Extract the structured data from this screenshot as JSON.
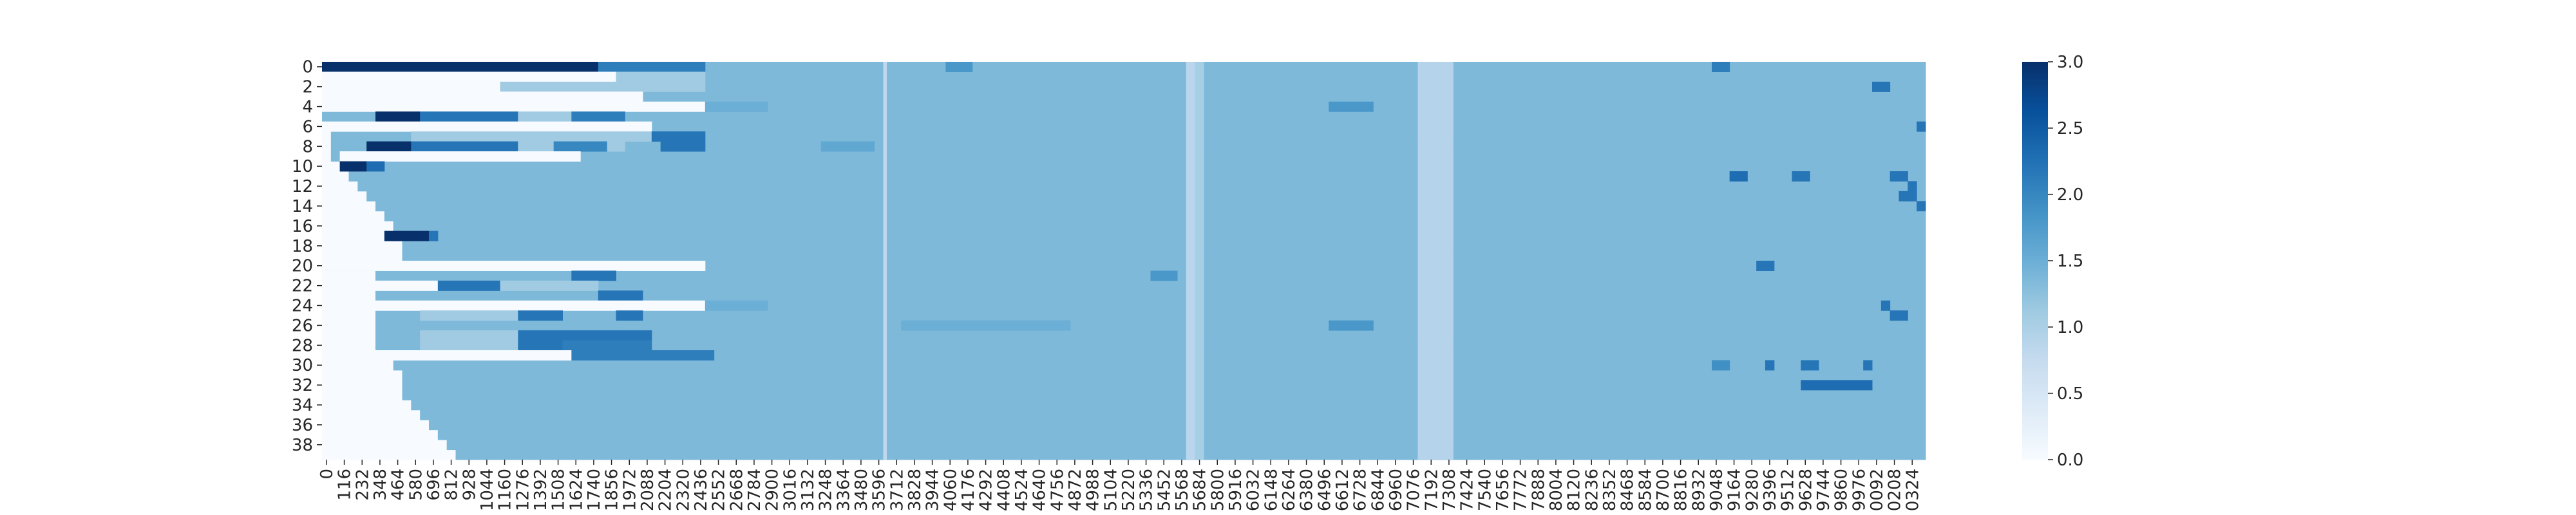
{
  "chart_data": {
    "type": "heatmap",
    "title": "",
    "xlabel": "",
    "ylabel": "",
    "n_rows": 40,
    "n_cols": 180,
    "x_tick_labels": [
      "0",
      "116",
      "232",
      "348",
      "464",
      "580",
      "696",
      "812",
      "928",
      "1044",
      "1160",
      "1276",
      "1392",
      "1508",
      "1624",
      "1740",
      "1856",
      "1972",
      "2088",
      "2204",
      "2320",
      "2436",
      "2552",
      "2668",
      "2784",
      "2900",
      "3016",
      "3132",
      "3248",
      "3364",
      "3480",
      "3596",
      "3712",
      "3828",
      "3944",
      "4060",
      "4176",
      "4292",
      "4408",
      "4524",
      "4640",
      "4756",
      "4872",
      "4988",
      "5104",
      "5220",
      "5336",
      "5452",
      "5568",
      "5684",
      "5800",
      "5916",
      "6032",
      "6148",
      "6264",
      "6380",
      "6496",
      "6612",
      "6728",
      "6844",
      "6960",
      "7076",
      "7192",
      "7308",
      "7424",
      "7540",
      "7656",
      "7772",
      "7888",
      "8004",
      "8120",
      "8236",
      "8352",
      "8468",
      "8584",
      "8700",
      "8816",
      "8932",
      "9048",
      "9164",
      "9280",
      "9396",
      "9512",
      "9628",
      "9744",
      "9860",
      "9976",
      "0092",
      "0208",
      "0324"
    ],
    "y_tick_labels": [
      "0",
      "2",
      "4",
      "6",
      "8",
      "10",
      "12",
      "14",
      "16",
      "18",
      "20",
      "22",
      "24",
      "26",
      "28",
      "30",
      "32",
      "34",
      "36",
      "38"
    ],
    "colorbar": {
      "range": [
        0,
        3
      ],
      "ticks": [
        "0.0",
        "0.5",
        "1.0",
        "1.5",
        "2.0",
        "2.5",
        "3.0"
      ]
    },
    "colormap": "Blues",
    "colors": [
      "#f7fbff",
      "#deebf7",
      "#c6dbef",
      "#9ecae1",
      "#6baed6",
      "#4292c6",
      "#2171b5",
      "#08519c",
      "#08306b"
    ],
    "baseline_value": 1.35,
    "row_starts": [
      0,
      0,
      0,
      0,
      0,
      0,
      1,
      1,
      1,
      1,
      2,
      3,
      4,
      5,
      6,
      7,
      8,
      8,
      9,
      9,
      0,
      6,
      6,
      6,
      6,
      6,
      6,
      6,
      6,
      6,
      8,
      9,
      9,
      9,
      10,
      11,
      12,
      13,
      14,
      15
    ],
    "segments": [
      {
        "row": 0,
        "c0": 0,
        "c1": 31,
        "v": 3.0
      },
      {
        "row": 0,
        "c0": 31,
        "c1": 43,
        "v": 2.1
      },
      {
        "row": 1,
        "c0": 0,
        "c1": 33,
        "v": 0.0
      },
      {
        "row": 1,
        "c0": 33,
        "c1": 43,
        "v": 1.1
      },
      {
        "row": 2,
        "c0": 0,
        "c1": 20,
        "v": 0.0
      },
      {
        "row": 2,
        "c0": 20,
        "c1": 43,
        "v": 1.1
      },
      {
        "row": 3,
        "c0": 0,
        "c1": 36,
        "v": 0.0
      },
      {
        "row": 4,
        "c0": 0,
        "c1": 43,
        "v": 0.0
      },
      {
        "row": 4,
        "c0": 43,
        "c1": 50,
        "v": 1.5
      },
      {
        "row": 5,
        "c0": 6,
        "c1": 11,
        "v": 3.0
      },
      {
        "row": 5,
        "c0": 11,
        "c1": 22,
        "v": 2.2
      },
      {
        "row": 5,
        "c0": 22,
        "c1": 28,
        "v": 1.1
      },
      {
        "row": 5,
        "c0": 28,
        "c1": 34,
        "v": 2.1
      },
      {
        "row": 6,
        "c0": 0,
        "c1": 37,
        "v": 0.0
      },
      {
        "row": 7,
        "c0": 10,
        "c1": 37,
        "v": 1.1
      },
      {
        "row": 7,
        "c0": 37,
        "c1": 43,
        "v": 2.2
      },
      {
        "row": 8,
        "c0": 5,
        "c1": 10,
        "v": 3.0
      },
      {
        "row": 8,
        "c0": 10,
        "c1": 22,
        "v": 2.2
      },
      {
        "row": 8,
        "c0": 22,
        "c1": 26,
        "v": 1.1
      },
      {
        "row": 8,
        "c0": 26,
        "c1": 32,
        "v": 2.0
      },
      {
        "row": 8,
        "c0": 32,
        "c1": 34,
        "v": 1.1
      },
      {
        "row": 8,
        "c0": 38,
        "c1": 43,
        "v": 2.2
      },
      {
        "row": 8,
        "c0": 56,
        "c1": 62,
        "v": 1.6
      },
      {
        "row": 9,
        "c0": 2,
        "c1": 29,
        "v": 0.0
      },
      {
        "row": 10,
        "c0": 2,
        "c1": 5,
        "v": 3.0
      },
      {
        "row": 10,
        "c0": 5,
        "c1": 7,
        "v": 2.3
      },
      {
        "row": 17,
        "c0": 7,
        "c1": 12,
        "v": 3.0
      },
      {
        "row": 17,
        "c0": 12,
        "c1": 13,
        "v": 2.2
      },
      {
        "row": 20,
        "c0": 0,
        "c1": 43,
        "v": 0.0
      },
      {
        "row": 21,
        "c0": 28,
        "c1": 33,
        "v": 2.2
      },
      {
        "row": 22,
        "c0": 0,
        "c1": 13,
        "v": 0.0
      },
      {
        "row": 22,
        "c0": 13,
        "c1": 20,
        "v": 2.2
      },
      {
        "row": 22,
        "c0": 20,
        "c1": 31,
        "v": 1.1
      },
      {
        "row": 23,
        "c0": 31,
        "c1": 36,
        "v": 2.2
      },
      {
        "row": 24,
        "c0": 0,
        "c1": 43,
        "v": 0.0
      },
      {
        "row": 24,
        "c0": 43,
        "c1": 50,
        "v": 1.5
      },
      {
        "row": 25,
        "c0": 11,
        "c1": 22,
        "v": 1.1
      },
      {
        "row": 25,
        "c0": 22,
        "c1": 27,
        "v": 2.2
      },
      {
        "row": 25,
        "c0": 33,
        "c1": 36,
        "v": 2.2
      },
      {
        "row": 27,
        "c0": 11,
        "c1": 22,
        "v": 1.1
      },
      {
        "row": 27,
        "c0": 22,
        "c1": 32,
        "v": 2.2
      },
      {
        "row": 27,
        "c0": 32,
        "c1": 37,
        "v": 2.2
      },
      {
        "row": 28,
        "c0": 11,
        "c1": 22,
        "v": 1.1
      },
      {
        "row": 28,
        "c0": 22,
        "c1": 27,
        "v": 2.2
      },
      {
        "row": 28,
        "c0": 27,
        "c1": 37,
        "v": 2.1
      },
      {
        "row": 29,
        "c0": 0,
        "c1": 28,
        "v": 0.0
      },
      {
        "row": 29,
        "c0": 28,
        "c1": 44,
        "v": 2.1
      },
      {
        "row": 0,
        "c0": 70,
        "c1": 73,
        "v": 1.8
      },
      {
        "row": 0,
        "c0": 156,
        "c1": 158,
        "v": 2.1
      },
      {
        "row": 2,
        "c0": 174,
        "c1": 176,
        "v": 2.2
      },
      {
        "row": 6,
        "c0": 179,
        "c1": 180,
        "v": 2.2
      },
      {
        "row": 11,
        "c0": 158,
        "c1": 160,
        "v": 2.3
      },
      {
        "row": 11,
        "c0": 165,
        "c1": 167,
        "v": 2.2
      },
      {
        "row": 11,
        "c0": 176,
        "c1": 178,
        "v": 2.2
      },
      {
        "row": 12,
        "c0": 178,
        "c1": 179,
        "v": 2.2
      },
      {
        "row": 13,
        "c0": 177,
        "c1": 179,
        "v": 2.2
      },
      {
        "row": 14,
        "c0": 179,
        "c1": 180,
        "v": 2.2
      },
      {
        "row": 20,
        "c0": 161,
        "c1": 163,
        "v": 2.2
      },
      {
        "row": 21,
        "c0": 93,
        "c1": 96,
        "v": 1.8
      },
      {
        "row": 26,
        "c0": 113,
        "c1": 118,
        "v": 1.8
      },
      {
        "row": 26,
        "c0": 65,
        "c1": 84,
        "v": 1.5
      },
      {
        "row": 4,
        "c0": 113,
        "c1": 118,
        "v": 1.8
      },
      {
        "row": 30,
        "c0": 156,
        "c1": 158,
        "v": 1.9
      },
      {
        "row": 30,
        "c0": 162,
        "c1": 163,
        "v": 2.2
      },
      {
        "row": 30,
        "c0": 166,
        "c1": 168,
        "v": 2.2
      },
      {
        "row": 30,
        "c0": 173,
        "c1": 174,
        "v": 2.2
      },
      {
        "row": 32,
        "c0": 166,
        "c1": 174,
        "v": 2.3
      },
      {
        "row": 25,
        "c0": 176,
        "c1": 178,
        "v": 2.2
      },
      {
        "row": 24,
        "c0": 175,
        "c1": 176,
        "v": 2.2
      }
    ],
    "column_bands": [
      {
        "c0": 63,
        "c1": 63.4,
        "v": 0.75
      },
      {
        "c0": 97,
        "c1": 98,
        "v": 0.8
      },
      {
        "c0": 98,
        "c1": 99,
        "v": 1.0
      },
      {
        "c0": 123,
        "c1": 127,
        "v": 0.85
      }
    ]
  }
}
